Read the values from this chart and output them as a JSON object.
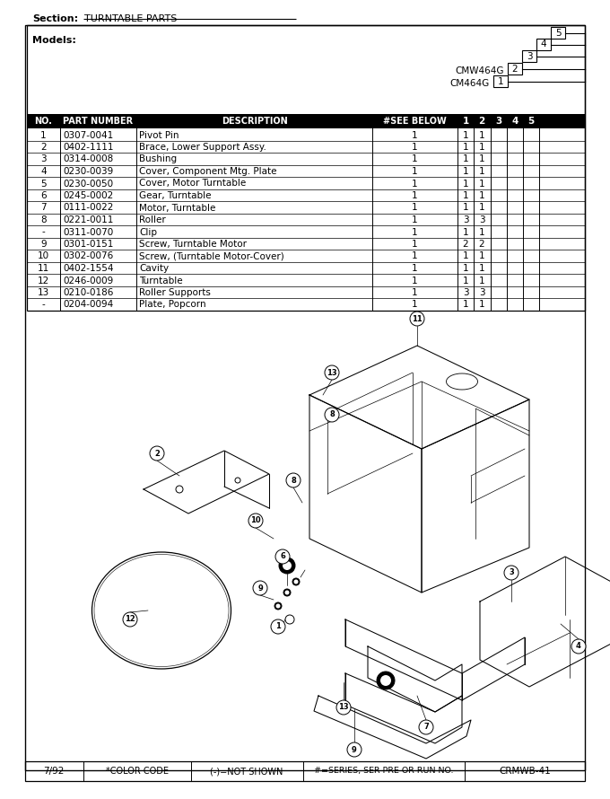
{
  "section_label": "Section:",
  "section_title": "TURNTABLE PARTS",
  "models_label": "Models:",
  "model_1": "CM464G",
  "model_2": "CMW464G",
  "rows": [
    [
      "1",
      "0307-0041",
      "Pivot Pin",
      "1",
      "1",
      "1",
      "",
      "",
      ""
    ],
    [
      "2",
      "0402-1111",
      "Brace, Lower Support Assy.",
      "1",
      "1",
      "1",
      "",
      "",
      ""
    ],
    [
      "3",
      "0314-0008",
      "Bushing",
      "1",
      "1",
      "1",
      "",
      "",
      ""
    ],
    [
      "4",
      "0230-0039",
      "Cover, Component Mtg. Plate",
      "1",
      "1",
      "1",
      "",
      "",
      ""
    ],
    [
      "5",
      "0230-0050",
      "Cover, Motor Turntable",
      "1",
      "1",
      "1",
      "",
      "",
      ""
    ],
    [
      "6",
      "0245-0002",
      "Gear, Turntable",
      "1",
      "1",
      "1",
      "",
      "",
      ""
    ],
    [
      "7",
      "0111-0022",
      "Motor, Turntable",
      "1",
      "1",
      "1",
      "",
      "",
      ""
    ],
    [
      "8",
      "0221-0011",
      "Roller",
      "1",
      "3",
      "3",
      "",
      "",
      ""
    ],
    [
      "-",
      "0311-0070",
      "Clip",
      "1",
      "1",
      "1",
      "",
      "",
      ""
    ],
    [
      "9",
      "0301-0151",
      "Screw, Turntable Motor",
      "1",
      "2",
      "2",
      "",
      "",
      ""
    ],
    [
      "10",
      "0302-0076",
      "Screw, (Turntable Motor-Cover)",
      "1",
      "1",
      "1",
      "",
      "",
      ""
    ],
    [
      "11",
      "0402-1554",
      "Cavity",
      "1",
      "1",
      "1",
      "",
      "",
      ""
    ],
    [
      "12",
      "0246-0009",
      "Turntable",
      "1",
      "1",
      "1",
      "",
      "",
      ""
    ],
    [
      "13",
      "0210-0186",
      "Roller Supports",
      "1",
      "3",
      "3",
      "",
      "",
      ""
    ],
    [
      "-",
      "0204-0094",
      "Plate, Popcorn",
      "1",
      "1",
      "1",
      "",
      "",
      ""
    ]
  ],
  "footer_left": "7/92",
  "footer_2": "*COLOR CODE",
  "footer_3": "(-)=NOT SHOWN",
  "footer_4": "#=SERIES, SER PRE OR RUN NO.",
  "footer_right": "CRMWB-41",
  "bg_color": "#ffffff"
}
